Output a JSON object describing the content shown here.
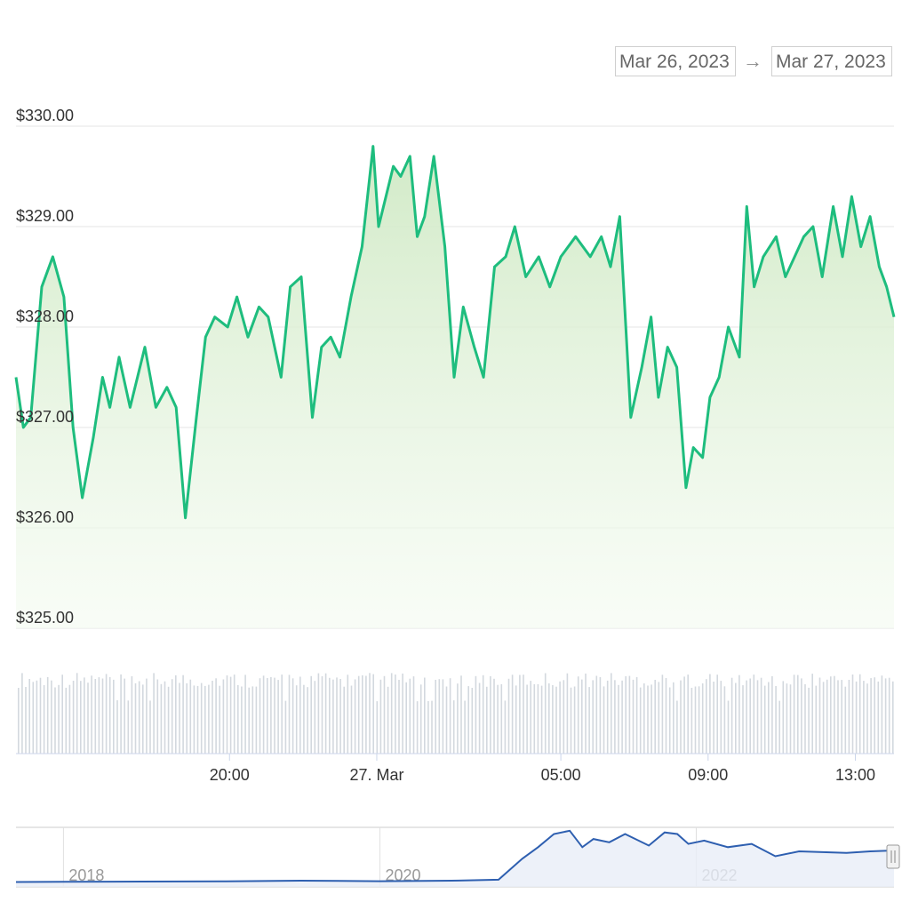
{
  "date_range": {
    "from": "Mar 26, 2023",
    "arrow": "→",
    "to": "Mar 27, 2023"
  },
  "colors": {
    "price_line": "#1ebd7e",
    "volume_bar": "#d3d8de",
    "navigator_line": "#2e5fb0",
    "grid": "#e6e6e6"
  },
  "chart_data": [
    {
      "type": "area",
      "xlabel": "",
      "ylabel": "",
      "ylim": [
        325,
        330
      ],
      "y_ticks": [
        "$325.00",
        "$326.00",
        "$327.00",
        "$328.00",
        "$329.00",
        "$330.00"
      ],
      "x_tick_labels": [
        "20:00",
        "27. Mar",
        "05:00",
        "09:00",
        "13:00"
      ],
      "x_tick_hours": [
        20,
        24,
        29,
        33,
        37
      ],
      "x_range_hours": [
        14.2,
        38.05
      ],
      "grid": true,
      "series": [
        {
          "x_hours": [
            14.2,
            14.4,
            14.6,
            14.9,
            15.2,
            15.5,
            15.75,
            16.0,
            16.3,
            16.55,
            16.75,
            17.0,
            17.3,
            17.7,
            18.0,
            18.3,
            18.55,
            18.8,
            19.1,
            19.35,
            19.6,
            19.95,
            20.2,
            20.5,
            20.8,
            21.05,
            21.4,
            21.65,
            21.95,
            22.25,
            22.5,
            22.75,
            23.0,
            23.3,
            23.6,
            23.9,
            24.05,
            24.25,
            24.45,
            24.65,
            24.9,
            25.1,
            25.3,
            25.55,
            25.85,
            26.1,
            26.35,
            26.65,
            26.9,
            27.2,
            27.5,
            27.75,
            28.05,
            28.4,
            28.7,
            29.0,
            29.4,
            29.8,
            30.1,
            30.35,
            30.6,
            30.9,
            31.2,
            31.45,
            31.65,
            31.9,
            32.15,
            32.4,
            32.6,
            32.85,
            33.05,
            33.3,
            33.55,
            33.85,
            34.05,
            34.25,
            34.5,
            34.85,
            35.1,
            35.35,
            35.6,
            35.85,
            36.1,
            36.4,
            36.65,
            36.9,
            37.15,
            37.4,
            37.65,
            37.85,
            38.05
          ],
          "values": [
            327.5,
            327.0,
            327.1,
            328.4,
            328.7,
            328.3,
            327.0,
            326.3,
            326.9,
            327.5,
            327.2,
            327.7,
            327.2,
            327.8,
            327.2,
            327.4,
            327.2,
            326.1,
            327.1,
            327.9,
            328.1,
            328.0,
            328.3,
            327.9,
            328.2,
            328.1,
            327.5,
            328.4,
            328.5,
            327.1,
            327.8,
            327.9,
            327.7,
            328.3,
            328.8,
            329.8,
            329.0,
            329.3,
            329.6,
            329.5,
            329.7,
            328.9,
            329.1,
            329.7,
            328.8,
            327.5,
            328.2,
            327.8,
            327.5,
            328.6,
            328.7,
            329.0,
            328.5,
            328.7,
            328.4,
            328.7,
            328.9,
            328.7,
            328.9,
            328.6,
            329.1,
            327.1,
            327.6,
            328.1,
            327.3,
            327.8,
            327.6,
            326.4,
            326.8,
            326.7,
            327.3,
            327.5,
            328.0,
            327.7,
            329.2,
            328.4,
            328.7,
            328.9,
            328.5,
            328.7,
            328.9,
            329.0,
            328.5,
            329.2,
            328.7,
            329.3,
            328.8,
            329.1,
            328.6,
            328.4,
            328.1
          ]
        }
      ]
    },
    {
      "type": "bar",
      "xlabel": "",
      "ylabel": "",
      "grid": false
    },
    {
      "type": "area",
      "xlabel": "",
      "ylabel": "",
      "x_tick_labels": [
        "2018",
        "2020",
        "2022"
      ],
      "x_tick_years": [
        2018,
        2020,
        2022
      ],
      "x_range_years": [
        2017.7,
        2023.25
      ],
      "grid": true,
      "series": [
        {
          "x_years": [
            2017.7,
            2018.0,
            2018.5,
            2019.0,
            2019.5,
            2020.0,
            2020.5,
            2020.75,
            2020.9,
            2021.0,
            2021.1,
            2021.2,
            2021.28,
            2021.35,
            2021.45,
            2021.55,
            2021.7,
            2021.8,
            2021.88,
            2021.95,
            2022.05,
            2022.2,
            2022.35,
            2022.5,
            2022.65,
            2022.8,
            2022.95,
            2023.1,
            2023.25
          ],
          "values": [
            8,
            10,
            11,
            12,
            16,
            13,
            17,
            22,
            150,
            220,
            300,
            320,
            220,
            270,
            250,
            300,
            230,
            310,
            300,
            240,
            260,
            220,
            240,
            165,
            195,
            190,
            185,
            195,
            200
          ]
        }
      ]
    }
  ]
}
